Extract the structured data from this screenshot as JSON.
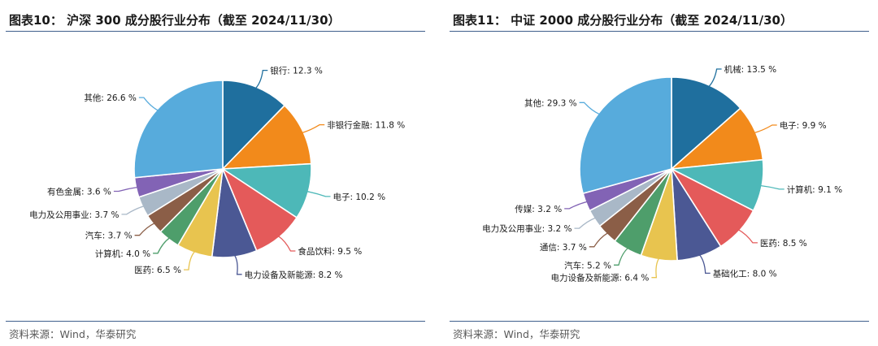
{
  "chart_data": [
    {
      "type": "pie",
      "title": "图表10： 沪深 300 成分股行业分布（截至 2024/11/30）",
      "source": "资料来源：Wind，华泰研究",
      "categories": [
        "银行",
        "非银行金融",
        "电子",
        "食品饮料",
        "电力设备及新能源",
        "医药",
        "计算机",
        "汽车",
        "电力及公用事业",
        "有色金属",
        "其他"
      ],
      "values": [
        12.3,
        11.8,
        10.2,
        9.5,
        8.2,
        6.5,
        4.0,
        3.7,
        3.7,
        3.6,
        26.6
      ],
      "labels": [
        "银行: 12.3 %",
        "非银行金融: 11.8 %",
        "电子: 10.2 %",
        "食品饮料: 9.5 %",
        "电力设备及新能源: 8.2 %",
        "医药: 6.5 %",
        "计算机: 4.0 %",
        "汽车: 3.7 %",
        "电力及公用事业: 3.7 %",
        "有色金属: 3.6 %",
        "其他: 26.6 %"
      ],
      "colors": [
        "#1f6f9e",
        "#f28a1b",
        "#4db8b8",
        "#e45a5a",
        "#4b5894",
        "#e8c44f",
        "#4e9e6b",
        "#8b5e47",
        "#a9b8c7",
        "#8263b5",
        "#57abdc"
      ]
    },
    {
      "type": "pie",
      "title": "图表11： 中证 2000 成分股行业分布（截至 2024/11/30）",
      "source": "资料来源：Wind，华泰研究",
      "categories": [
        "机械",
        "电子",
        "计算机",
        "医药",
        "基础化工",
        "电力设备及新能源",
        "汽车",
        "通信",
        "电力及公用事业",
        "传媒",
        "其他"
      ],
      "values": [
        13.5,
        9.9,
        9.1,
        8.5,
        8.0,
        6.4,
        5.2,
        3.7,
        3.2,
        3.2,
        29.3
      ],
      "labels": [
        "机械: 13.5 %",
        "电子: 9.9 %",
        "计算机: 9.1 %",
        "医药: 8.5 %",
        "基础化工: 8.0 %",
        "电力设备及新能源: 6.4 %",
        "汽车: 5.2 %",
        "通信: 3.7 %",
        "电力及公用事业: 3.2 %",
        "传媒: 3.2 %",
        "其他: 29.3 %"
      ],
      "colors": [
        "#1f6f9e",
        "#f28a1b",
        "#4db8b8",
        "#e45a5a",
        "#4b5894",
        "#e8c44f",
        "#4e9e6b",
        "#8b5e47",
        "#a9b8c7",
        "#8263b5",
        "#57abdc"
      ]
    }
  ]
}
